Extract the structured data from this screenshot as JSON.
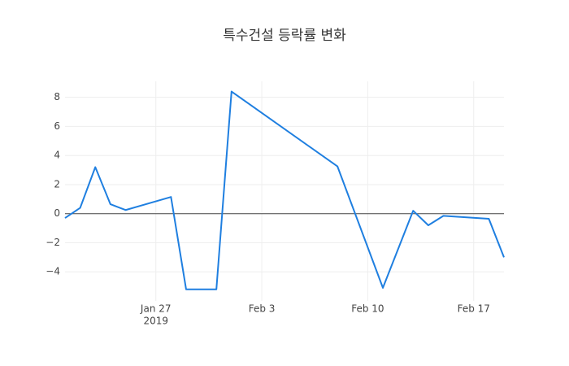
{
  "chart_data": {
    "type": "line",
    "title": "특수건설 등락률 변화",
    "x": [
      "2019-01-21",
      "2019-01-22",
      "2019-01-23",
      "2019-01-24",
      "2019-01-25",
      "2019-01-28",
      "2019-01-29",
      "2019-01-31",
      "2019-02-01",
      "2019-02-08",
      "2019-02-11",
      "2019-02-13",
      "2019-02-14",
      "2019-02-15",
      "2019-02-18",
      "2019-02-19"
    ],
    "values": [
      -0.3,
      0.4,
      3.2,
      0.65,
      0.25,
      1.15,
      -5.2,
      -5.2,
      8.4,
      3.25,
      -5.1,
      0.2,
      -0.8,
      -0.15,
      -0.35,
      -3.0
    ],
    "color": "#1f7fe0",
    "xlim": [
      "2019-01-21",
      "2019-02-19"
    ],
    "xticks": [
      {
        "value": "2019-01-27",
        "label": "Jan 27"
      },
      {
        "value": "2019-02-03",
        "label": "Feb 3"
      },
      {
        "value": "2019-02-10",
        "label": "Feb 10"
      },
      {
        "value": "2019-02-17",
        "label": "Feb 17"
      }
    ],
    "x_year_label": "2019",
    "ylim": [
      -6,
      9.1
    ],
    "yticks": [
      {
        "value": -4,
        "label": "−4"
      },
      {
        "value": -2,
        "label": "−2"
      },
      0,
      2,
      4,
      6,
      8
    ],
    "grid": true
  }
}
